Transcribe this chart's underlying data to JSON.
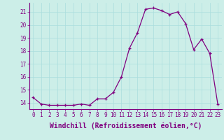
{
  "x": [
    0,
    1,
    2,
    3,
    4,
    5,
    6,
    7,
    8,
    9,
    10,
    11,
    12,
    13,
    14,
    15,
    16,
    17,
    18,
    19,
    20,
    21,
    22,
    23
  ],
  "y": [
    14.4,
    13.9,
    13.8,
    13.8,
    13.8,
    13.8,
    13.9,
    13.8,
    14.3,
    14.3,
    14.8,
    16.0,
    18.2,
    19.4,
    21.2,
    21.3,
    21.1,
    20.8,
    21.0,
    20.1,
    18.1,
    18.9,
    17.8,
    13.9
  ],
  "line_color": "#800080",
  "marker": "+",
  "marker_size": 3,
  "bg_color": "#cceee8",
  "grid_color": "#aadddd",
  "xlabel": "Windchill (Refroidissement éolien,°C)",
  "xlabel_fontsize": 7,
  "ylim": [
    13.5,
    21.7
  ],
  "yticks": [
    14,
    15,
    16,
    17,
    18,
    19,
    20,
    21
  ],
  "xticks": [
    0,
    1,
    2,
    3,
    4,
    5,
    6,
    7,
    8,
    9,
    10,
    11,
    12,
    13,
    14,
    15,
    16,
    17,
    18,
    19,
    20,
    21,
    22,
    23
  ],
  "tick_fontsize": 5.5,
  "tick_color": "#800080",
  "spine_color": "#800080",
  "xlim": [
    -0.5,
    23.5
  ]
}
